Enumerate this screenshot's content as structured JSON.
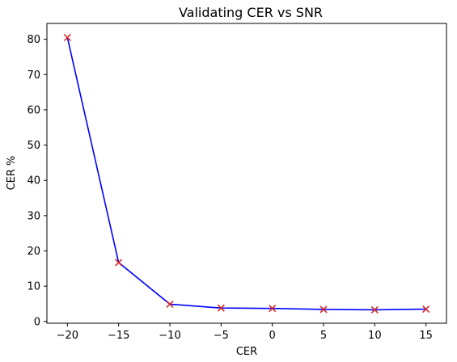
{
  "chart_data": {
    "type": "line",
    "title": "Validating CER vs SNR",
    "xlabel": "CER",
    "ylabel": "CER %",
    "x": [
      -20,
      -15,
      -10,
      -5,
      0,
      5,
      10,
      15
    ],
    "series": [
      {
        "values": [
          80.5,
          16.7,
          4.9,
          3.8,
          3.7,
          3.4,
          3.3,
          3.5
        ],
        "line_color": "#0000ff",
        "marker": "x",
        "marker_color": "#d62728"
      }
    ],
    "xlim": [
      -22,
      17
    ],
    "ylim": [
      -0.5,
      84.5
    ],
    "x_ticks": [
      -20,
      -15,
      -10,
      -5,
      0,
      5,
      10,
      15
    ],
    "x_tick_labels": [
      "−20",
      "−15",
      "−10",
      "−5",
      "0",
      "5",
      "10",
      "15"
    ],
    "y_ticks": [
      0,
      10,
      20,
      30,
      40,
      50,
      60,
      70,
      80
    ],
    "y_tick_labels": [
      "0",
      "10",
      "20",
      "30",
      "40",
      "50",
      "60",
      "70",
      "80"
    ],
    "grid": false,
    "legend": "none"
  }
}
